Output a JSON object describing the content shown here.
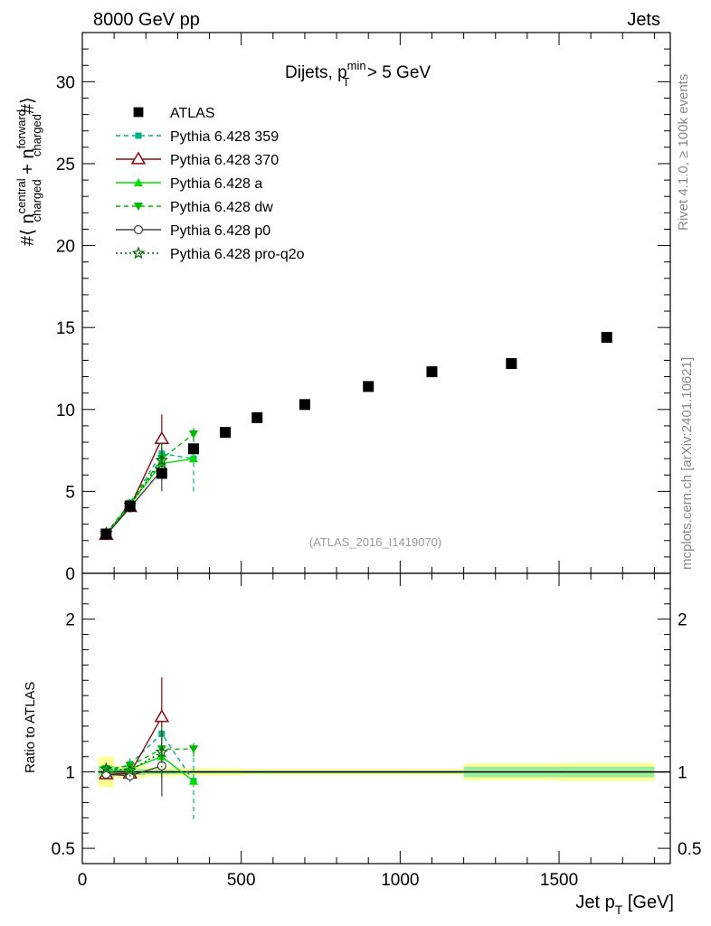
{
  "header": {
    "left": "8000 GeV pp",
    "right": "Jets"
  },
  "side_text": {
    "rivet": "Rivet 4.1.0, ≥ 100k events",
    "mcplots": "mcplots.cern.ch [arXiv:2401.10621]"
  },
  "watermark": "(ATLAS_2016_I1419070)",
  "colors": {
    "atlas": "#000000",
    "py359": "#00b386",
    "py370": "#8b0a14",
    "pya": "#00dd00",
    "pydw": "#00b800",
    "pyp0": "#444444",
    "pyq2o": "#006600",
    "band_yellow": "#ffff99",
    "band_green": "#99ee99"
  },
  "chart_data": [
    {
      "type": "scatter",
      "panel": "main",
      "title_text": "Dijets, p",
      "title_sup": "min",
      "title_sub": "T",
      "title_tail": " > 5 GeV",
      "ylabel": "#⟨ n_charged^central + n_charged^forward #⟩",
      "ylabel_parts": {
        "prefix": "#⟨ n",
        "sup1": "central",
        "sub1": "charged",
        "mid": " + n",
        "sup2": "forward",
        "sub2": "charged",
        "suffix": "#⟩"
      },
      "xlim": [
        0,
        1850
      ],
      "ylim": [
        0,
        33
      ],
      "yticks": [
        0,
        5,
        10,
        15,
        20,
        25,
        30
      ],
      "series": [
        {
          "key": "atlas",
          "name": "ATLAS",
          "marker": "square",
          "line": "none",
          "x": [
            75,
            150,
            250,
            350,
            450,
            550,
            700,
            900,
            1100,
            1350,
            1650
          ],
          "y": [
            2.4,
            4.1,
            6.1,
            7.6,
            8.6,
            9.5,
            10.3,
            11.4,
            12.3,
            12.8,
            14.4
          ]
        },
        {
          "key": "py359",
          "name": "Pythia 6.428 359",
          "marker": "small-square",
          "line": "dashed",
          "x": [
            75,
            150,
            250,
            350
          ],
          "y": [
            2.4,
            4.3,
            7.3,
            7.0
          ],
          "err": [
            0,
            0.25,
            1.2,
            2.0
          ]
        },
        {
          "key": "py370",
          "name": "Pythia 6.428 370",
          "marker": "open-triangle",
          "line": "solid",
          "x": [
            75,
            150,
            250
          ],
          "y": [
            2.35,
            4.05,
            8.2
          ],
          "err": [
            0,
            0.2,
            1.5
          ]
        },
        {
          "key": "pya",
          "name": "Pythia 6.428 a",
          "marker": "triangle",
          "line": "solid",
          "x": [
            75,
            150,
            250,
            350
          ],
          "y": [
            2.4,
            4.2,
            6.7,
            7.0
          ],
          "err": [
            0,
            0.2,
            0.8,
            0.3
          ]
        },
        {
          "key": "pydw",
          "name": "Pythia 6.428 dw",
          "marker": "down-triangle",
          "line": "dashed",
          "x": [
            75,
            150,
            250,
            350
          ],
          "y": [
            2.45,
            4.25,
            7.0,
            8.5
          ],
          "err": [
            0,
            0.2,
            0.9,
            0.4
          ]
        },
        {
          "key": "pyp0",
          "name": "Pythia 6.428 p0",
          "marker": "open-circle",
          "line": "solid",
          "x": [
            75,
            150,
            250
          ],
          "y": [
            2.35,
            4.0,
            6.3
          ],
          "err": [
            0,
            0.2,
            1.3
          ]
        },
        {
          "key": "pyq2o",
          "name": "Pythia 6.428 pro-q2o",
          "marker": "star",
          "line": "dotted",
          "x": [
            75,
            150,
            250
          ],
          "y": [
            2.45,
            4.15,
            6.9
          ],
          "err": [
            0,
            0.2,
            1.0
          ]
        }
      ]
    },
    {
      "type": "scatter",
      "panel": "ratio",
      "ylabel": "Ratio to ATLAS",
      "xlabel_text": "Jet p",
      "xlabel_sub": "T",
      "xlabel_tail": " [GeV]",
      "xlim": [
        0,
        1850
      ],
      "ylim": [
        0.4,
        2.3
      ],
      "yticks": [
        0.5,
        1,
        2
      ],
      "xticks": [
        0,
        500,
        1000,
        1500
      ],
      "reference_line": 1,
      "band_bins": [
        {
          "x0": 50,
          "x1": 100,
          "yellow": [
            0.9,
            1.1
          ],
          "green": [
            0.96,
            1.04
          ]
        },
        {
          "x0": 100,
          "x1": 200,
          "yellow": [
            0.96,
            1.04
          ],
          "green": [
            0.98,
            1.02
          ]
        },
        {
          "x0": 200,
          "x1": 300,
          "yellow": [
            0.97,
            1.03
          ],
          "green": [
            0.985,
            1.015
          ]
        },
        {
          "x0": 300,
          "x1": 400,
          "yellow": [
            0.975,
            1.025
          ],
          "green": [
            0.99,
            1.01
          ]
        },
        {
          "x0": 400,
          "x1": 500,
          "yellow": [
            0.975,
            1.025
          ],
          "green": [
            0.99,
            1.01
          ]
        },
        {
          "x0": 500,
          "x1": 600,
          "yellow": [
            0.98,
            1.02
          ],
          "green": [
            0.99,
            1.01
          ]
        },
        {
          "x0": 600,
          "x1": 800,
          "yellow": [
            0.98,
            1.02
          ],
          "green": [
            0.99,
            1.01
          ]
        },
        {
          "x0": 800,
          "x1": 1000,
          "yellow": [
            0.98,
            1.02
          ],
          "green": [
            0.99,
            1.01
          ]
        },
        {
          "x0": 1000,
          "x1": 1200,
          "yellow": [
            0.98,
            1.02
          ],
          "green": [
            0.99,
            1.01
          ]
        },
        {
          "x0": 1200,
          "x1": 1500,
          "yellow": [
            0.945,
            1.055
          ],
          "green": [
            0.965,
            1.035
          ]
        },
        {
          "x0": 1500,
          "x1": 1800,
          "yellow": [
            0.94,
            1.06
          ],
          "green": [
            0.965,
            1.035
          ]
        }
      ],
      "series": [
        {
          "key": "py359",
          "x": [
            75,
            150,
            250,
            350
          ],
          "y": [
            1.0,
            1.05,
            1.25,
            0.94
          ],
          "err": [
            0,
            0.04,
            0.18,
            0.25
          ]
        },
        {
          "key": "py370",
          "x": [
            75,
            150,
            250
          ],
          "y": [
            0.985,
            0.99,
            1.36
          ],
          "err": [
            0,
            0.05,
            0.26
          ]
        },
        {
          "key": "pya",
          "x": [
            75,
            150,
            250,
            350
          ],
          "y": [
            1.0,
            1.02,
            1.1,
            0.94
          ],
          "err": [
            0,
            0.04,
            0.14,
            0.04
          ]
        },
        {
          "key": "pydw",
          "x": [
            75,
            150,
            250,
            350
          ],
          "y": [
            1.02,
            1.04,
            1.15,
            1.15
          ],
          "err": [
            0,
            0.04,
            0.15,
            0.05
          ]
        },
        {
          "key": "pyp0",
          "x": [
            75,
            150,
            250
          ],
          "y": [
            0.985,
            0.975,
            1.04
          ],
          "err": [
            0,
            0.04,
            0.2
          ]
        },
        {
          "key": "pyq2o",
          "x": [
            75,
            150,
            250
          ],
          "y": [
            1.02,
            1.01,
            1.13
          ],
          "err": [
            0,
            0.04,
            0.16
          ]
        }
      ]
    }
  ]
}
